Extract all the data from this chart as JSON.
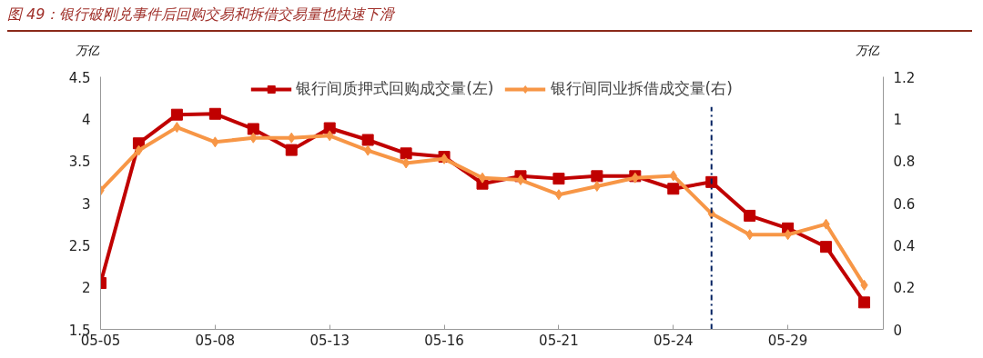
{
  "chart_data": {
    "type": "line",
    "title": "图 49：银行破刚兑事件后回购交易和拆借交易量也快速下滑",
    "ylabel": "万亿",
    "y2label": "万亿",
    "categories": [
      "05-05",
      null,
      null,
      "05-08",
      null,
      null,
      "05-13",
      null,
      null,
      "05-16",
      null,
      null,
      "05-21",
      null,
      null,
      "05-24",
      null,
      null,
      "05-29",
      null,
      null
    ],
    "series": [
      {
        "name": "银行间质押式回购成交量(左)",
        "color": "#c00000",
        "marker": "square",
        "values": [
          2.05,
          3.71,
          4.05,
          4.06,
          3.88,
          3.63,
          3.89,
          3.75,
          3.59,
          3.55,
          3.23,
          3.32,
          3.29,
          3.32,
          3.32,
          3.17,
          3.25,
          2.85,
          2.7,
          2.48,
          1.82
        ]
      },
      {
        "name": "银行间同业拆借成交量(右)",
        "color": "#f79646",
        "marker": "diamond",
        "axis": "y2",
        "values": [
          0.66,
          0.85,
          0.96,
          0.89,
          0.91,
          0.91,
          0.92,
          0.85,
          0.79,
          0.81,
          0.72,
          0.71,
          0.64,
          0.68,
          0.72,
          0.73,
          0.55,
          0.45,
          0.45,
          0.5,
          0.21
        ]
      }
    ],
    "ylim": [
      1.5,
      4.5
    ],
    "yticks": [
      1.5,
      2,
      2.5,
      3,
      3.5,
      4,
      4.5
    ],
    "y2lim": [
      0,
      1.2
    ],
    "y2ticks": [
      0,
      0.2,
      0.4,
      0.6,
      0.8,
      1,
      1.2
    ],
    "legend": "top",
    "grid": false
  }
}
